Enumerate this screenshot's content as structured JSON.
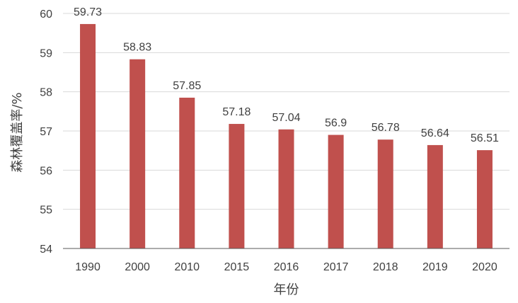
{
  "chart_data": {
    "type": "bar",
    "categories": [
      "1990",
      "2000",
      "2010",
      "2015",
      "2016",
      "2017",
      "2018",
      "2019",
      "2020"
    ],
    "values": [
      59.73,
      58.83,
      57.85,
      57.18,
      57.04,
      56.9,
      56.78,
      56.64,
      56.51
    ],
    "value_labels": [
      "59.73",
      "58.83",
      "57.85",
      "57.18",
      "57.04",
      "56.9",
      "56.78",
      "56.64",
      "56.51"
    ],
    "xlabel": "年份",
    "ylabel": "森林覆盖率/%",
    "ylim": [
      54,
      60
    ],
    "yticks": [
      "54",
      "55",
      "56",
      "57",
      "58",
      "59",
      "60"
    ],
    "grid": true,
    "bar_color": "#C0504D"
  }
}
